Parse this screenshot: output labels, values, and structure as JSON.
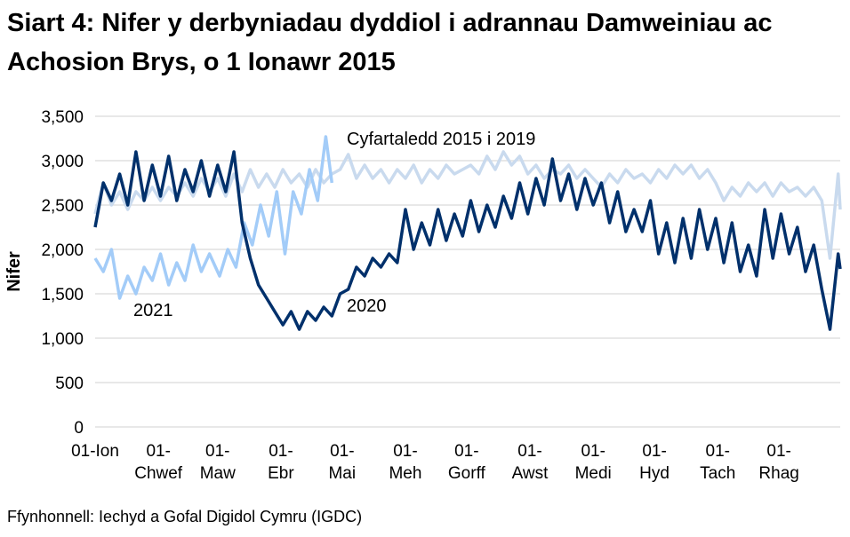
{
  "chart_data": {
    "type": "line",
    "title": "Siart 4: Nifer y derbyniadau dyddiol i adrannau Damweiniau ac Achosion Brys, o 1 Ionawr 2015",
    "ylabel": "Nifer",
    "xlabel": "",
    "ylim": [
      0,
      3500
    ],
    "yticks": [
      "0",
      "500",
      "1,000",
      "1,500",
      "2,000",
      "2,500",
      "3,000",
      "3,500"
    ],
    "ytick_values": [
      0,
      500,
      1000,
      1500,
      2000,
      2500,
      3000,
      3500
    ],
    "xticks": [
      {
        "date": "01-01",
        "label": [
          "01-Ion"
        ]
      },
      {
        "date": "02-01",
        "label": [
          "01-",
          "Chwef"
        ]
      },
      {
        "date": "03-01",
        "label": [
          "01-",
          "Maw"
        ]
      },
      {
        "date": "04-01",
        "label": [
          "01-",
          "Ebr"
        ]
      },
      {
        "date": "05-01",
        "label": [
          "01-",
          "Mai"
        ]
      },
      {
        "date": "06-01",
        "label": [
          "01-",
          "Meh"
        ]
      },
      {
        "date": "07-01",
        "label": [
          "01-",
          "Gorff"
        ]
      },
      {
        "date": "08-01",
        "label": [
          "01-",
          "Awst"
        ]
      },
      {
        "date": "09-01",
        "label": [
          "01-",
          "Medi"
        ]
      },
      {
        "date": "10-01",
        "label": [
          "01-",
          "Hyd"
        ]
      },
      {
        "date": "11-01",
        "label": [
          "01-",
          "Tach"
        ]
      },
      {
        "date": "12-01",
        "label": [
          "01-",
          "Rhag"
        ]
      }
    ],
    "grid": true,
    "legend": "none (inline labels)",
    "x_year": [
      "01-01",
      "01-05",
      "01-09",
      "01-13",
      "01-17",
      "01-21",
      "01-25",
      "01-29",
      "02-02",
      "02-06",
      "02-10",
      "02-14",
      "02-18",
      "02-22",
      "02-26",
      "03-01",
      "03-05",
      "03-09",
      "03-13",
      "03-17",
      "03-21",
      "03-25",
      "03-29",
      "04-02",
      "04-06",
      "04-10",
      "04-14",
      "04-18",
      "04-22",
      "04-26",
      "04-30",
      "05-04",
      "05-08",
      "05-12",
      "05-16",
      "05-20",
      "05-24",
      "05-28",
      "06-01",
      "06-05",
      "06-09",
      "06-13",
      "06-17",
      "06-21",
      "06-25",
      "06-29",
      "07-03",
      "07-07",
      "07-11",
      "07-15",
      "07-19",
      "07-23",
      "07-27",
      "07-31",
      "08-04",
      "08-08",
      "08-12",
      "08-16",
      "08-20",
      "08-24",
      "08-28",
      "09-01",
      "09-05",
      "09-09",
      "09-13",
      "09-17",
      "09-21",
      "09-25",
      "09-29",
      "10-03",
      "10-07",
      "10-11",
      "10-15",
      "10-19",
      "10-23",
      "10-27",
      "10-31",
      "11-04",
      "11-08",
      "11-12",
      "11-16",
      "11-20",
      "11-24",
      "11-28",
      "12-02",
      "12-06",
      "12-10",
      "12-14",
      "12-18",
      "12-22",
      "12-26",
      "12-30",
      "12-31"
    ],
    "x_2021": [
      "01-01",
      "01-05",
      "01-09",
      "01-13",
      "01-17",
      "01-21",
      "01-25",
      "01-29",
      "02-02",
      "02-06",
      "02-10",
      "02-14",
      "02-18",
      "02-22",
      "02-26",
      "03-02",
      "03-06",
      "03-10",
      "03-14",
      "03-18",
      "03-22",
      "03-26",
      "03-30",
      "04-03",
      "04-07",
      "04-11",
      "04-15",
      "04-19",
      "04-23",
      "04-26"
    ],
    "series": [
      {
        "name": "Cyfartaledd 2015 i 2019",
        "x": "x_year",
        "color": "#c9daee",
        "values": [
          2400,
          2750,
          2500,
          2650,
          2450,
          2650,
          2550,
          2700,
          2550,
          2700,
          2600,
          2750,
          2600,
          2800,
          2650,
          2800,
          2600,
          2850,
          2650,
          2900,
          2700,
          2850,
          2700,
          2900,
          2750,
          2850,
          2700,
          2900,
          2750,
          2850,
          2900,
          3070,
          2800,
          2950,
          2800,
          2900,
          2750,
          2900,
          2800,
          2950,
          2750,
          2900,
          2800,
          2950,
          2850,
          2900,
          2950,
          2850,
          3050,
          2900,
          3100,
          2950,
          3050,
          2850,
          2950,
          2800,
          2900,
          2850,
          2950,
          2800,
          2900,
          2800,
          2700,
          2850,
          2750,
          2900,
          2800,
          2850,
          2750,
          2900,
          2800,
          2950,
          2850,
          2950,
          2800,
          2900,
          2750,
          2550,
          2700,
          2600,
          2750,
          2650,
          2750,
          2600,
          2750,
          2650,
          2700,
          2600,
          2700,
          2550,
          1900,
          2850,
          2450
        ]
      },
      {
        "name": "2021",
        "x": "x_2021",
        "color": "#a3ccf8",
        "values": [
          1900,
          1750,
          2000,
          1450,
          1700,
          1500,
          1800,
          1650,
          1950,
          1600,
          1850,
          1650,
          2050,
          1750,
          1950,
          1700,
          2000,
          1800,
          2300,
          2050,
          2500,
          2150,
          2650,
          1950,
          2650,
          2400,
          2900,
          2550,
          3270,
          2750
        ]
      },
      {
        "name": "2020",
        "x": "x_year",
        "color": "#00306b",
        "values": [
          2250,
          2750,
          2550,
          2850,
          2500,
          3100,
          2550,
          2950,
          2600,
          3050,
          2550,
          2900,
          2650,
          3000,
          2600,
          2950,
          2650,
          3100,
          2300,
          1900,
          1600,
          1450,
          1300,
          1150,
          1300,
          1100,
          1300,
          1200,
          1350,
          1250,
          1500,
          1550,
          1800,
          1700,
          1900,
          1800,
          1950,
          1850,
          2450,
          2000,
          2300,
          2050,
          2450,
          2100,
          2400,
          2150,
          2550,
          2200,
          2500,
          2250,
          2600,
          2350,
          2750,
          2400,
          2800,
          2500,
          3020,
          2550,
          2850,
          2450,
          2800,
          2500,
          2750,
          2300,
          2650,
          2200,
          2450,
          2200,
          2550,
          1950,
          2300,
          1850,
          2350,
          1900,
          2450,
          2000,
          2350,
          1850,
          2300,
          1750,
          2050,
          1700,
          2450,
          1900,
          2400,
          1950,
          2250,
          1750,
          2050,
          1550,
          1100,
          1950,
          1780
        ]
      }
    ]
  },
  "source": "Ffynhonnell: Iechyd a Gofal Digidol Cymru (IGDC)"
}
